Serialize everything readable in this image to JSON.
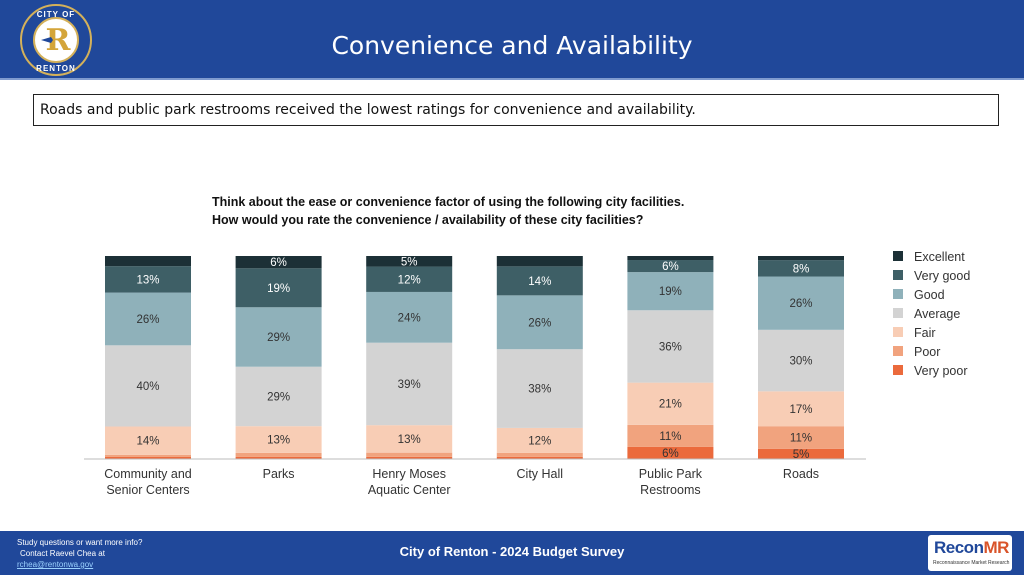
{
  "header": {
    "logo_text_top": "CITY OF",
    "logo_text_bottom": "RENTON",
    "logo_letter": "R",
    "title": "Convenience and Availability"
  },
  "callout": "Roads and public park restrooms received the lowest ratings for convenience and availability.",
  "chart_data": {
    "type": "bar",
    "stacked": true,
    "title": "Think about the ease or convenience factor of using the following city facilities.",
    "subtitle": "How would you rate the convenience / availability of these city facilities?",
    "categories": [
      [
        "Community and",
        "Senior Centers"
      ],
      [
        "Parks"
      ],
      [
        "Henry Moses",
        "Aquatic Center"
      ],
      [
        "City Hall"
      ],
      [
        "Public Park",
        "Restrooms"
      ],
      [
        "Roads"
      ]
    ],
    "series": [
      {
        "name": "Very poor",
        "color": "#eb6a3c",
        "values": [
          1,
          1,
          1,
          1,
          6,
          5
        ]
      },
      {
        "name": "Poor",
        "color": "#f1a37e",
        "values": [
          1,
          2,
          2,
          2,
          11,
          11
        ]
      },
      {
        "name": "Fair",
        "color": "#f8cdb5",
        "values": [
          14,
          13,
          13,
          12,
          21,
          17
        ]
      },
      {
        "name": "Average",
        "color": "#d3d3d3",
        "values": [
          40,
          29,
          39,
          38,
          36,
          30
        ]
      },
      {
        "name": "Good",
        "color": "#8fb1ba",
        "values": [
          26,
          29,
          24,
          26,
          19,
          26
        ]
      },
      {
        "name": "Very good",
        "color": "#3e5f66",
        "values": [
          13,
          19,
          12,
          14,
          6,
          8
        ]
      },
      {
        "name": "Excellent",
        "color": "#1c3036",
        "values": [
          5,
          6,
          5,
          5,
          2,
          2
        ]
      }
    ],
    "labels": [
      [
        "",
        "",
        "14%",
        "40%",
        "26%",
        "13%",
        ""
      ],
      [
        "",
        "",
        "13%",
        "29%",
        "29%",
        "19%",
        "6%"
      ],
      [
        "",
        "",
        "13%",
        "39%",
        "24%",
        "12%",
        "5%"
      ],
      [
        "",
        "",
        "12%",
        "38%",
        "26%",
        "14%",
        ""
      ],
      [
        "6%",
        "11%",
        "21%",
        "36%",
        "19%",
        "6%",
        ""
      ],
      [
        "5%",
        "11%",
        "17%",
        "30%",
        "26%",
        "8%",
        ""
      ]
    ],
    "legend_order": [
      "Excellent",
      "Very good",
      "Good",
      "Average",
      "Fair",
      "Poor",
      "Very poor"
    ],
    "ylim": [
      0,
      100
    ],
    "legend_position": "right"
  },
  "footer": {
    "line1": "Study questions or want more info?",
    "line2": "Contact Raevel Chea at",
    "email": "rchea@rentonwa.gov",
    "title": "City of Renton - 2024 Budget Survey",
    "brand": "Recon",
    "brand_suffix": "MR",
    "brand_tagline": "Reconnaissance Market Research"
  }
}
